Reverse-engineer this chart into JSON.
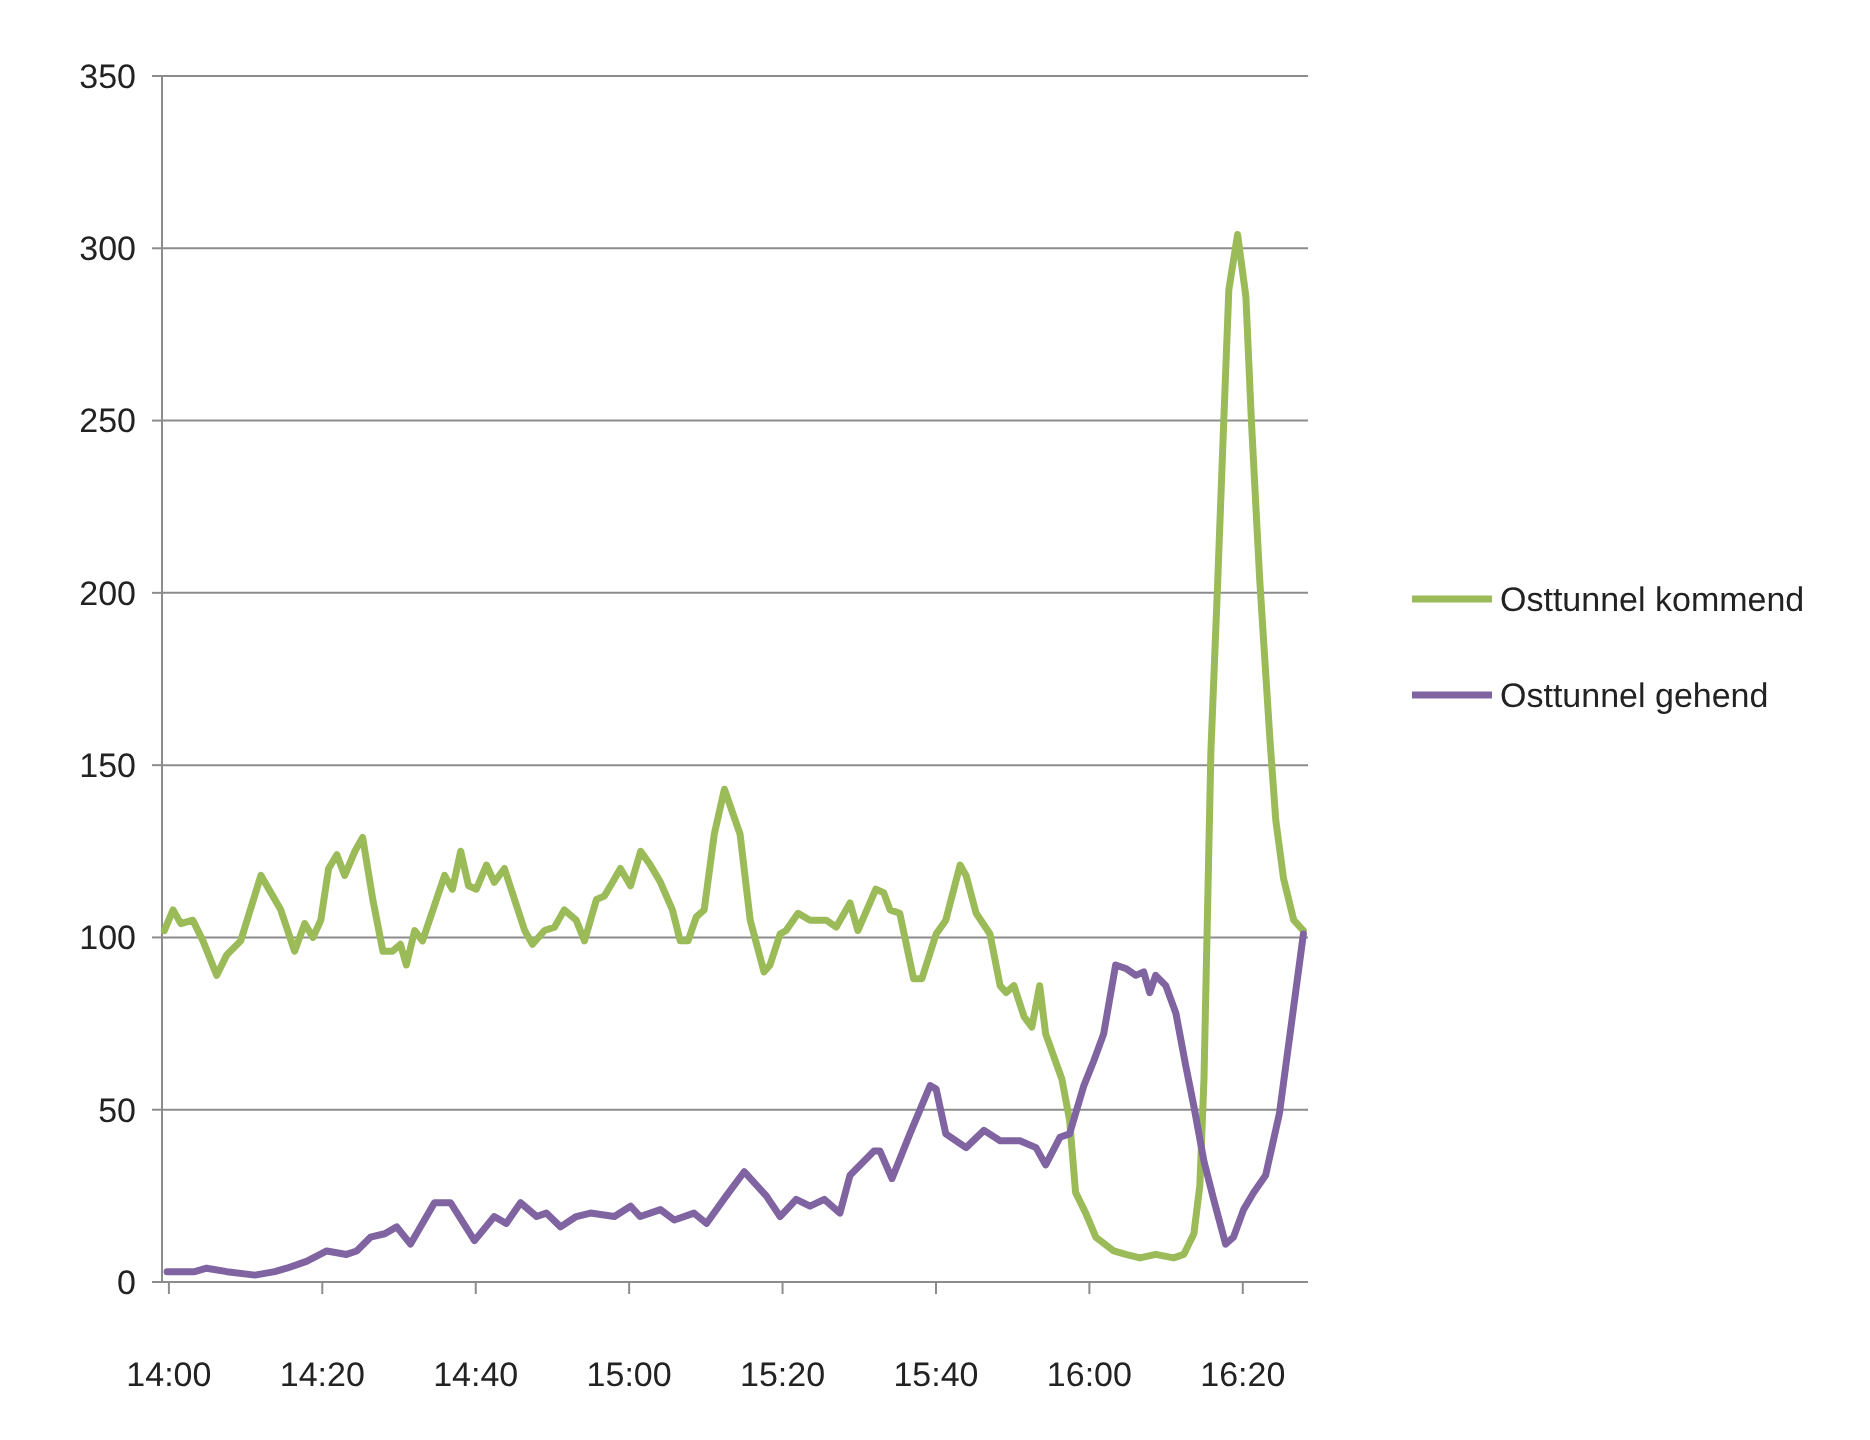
{
  "chart_data": {
    "type": "line",
    "xlim": [
      13.985,
      16.475
    ],
    "ylim": [
      0,
      350
    ],
    "xticks": [
      {
        "value": 14,
        "label": "14:00"
      },
      {
        "value": 14.3333,
        "label": "14:20"
      },
      {
        "value": 14.6667,
        "label": "14:40"
      },
      {
        "value": 15,
        "label": "15:00"
      },
      {
        "value": 15.3333,
        "label": "15:20"
      },
      {
        "value": 15.6667,
        "label": "15:40"
      },
      {
        "value": 16,
        "label": "16:00"
      },
      {
        "value": 16.3333,
        "label": "16:20"
      }
    ],
    "yticks": [
      0,
      50,
      100,
      150,
      200,
      250,
      300,
      350
    ],
    "grid": "y",
    "legend": "right",
    "marker": "none",
    "line_style": "solid",
    "series": [
      {
        "name": "Osttunnel kommend",
        "color": "#9bbb59",
        "x": [
          13.99,
          14.009,
          14.026,
          14.052,
          14.074,
          14.104,
          14.126,
          14.156,
          14.2,
          14.243,
          14.273,
          14.295,
          14.313,
          14.33,
          14.347,
          14.365,
          14.382,
          14.404,
          14.421,
          14.443,
          14.465,
          14.486,
          14.503,
          14.516,
          14.534,
          14.551,
          14.599,
          14.616,
          14.634,
          14.651,
          14.668,
          14.69,
          14.707,
          14.729,
          14.773,
          14.79,
          14.816,
          14.838,
          14.859,
          14.885,
          14.903,
          14.929,
          14.946,
          14.964,
          14.981,
          15.003,
          15.025,
          15.046,
          15.068,
          15.094,
          15.111,
          15.128,
          15.146,
          15.163,
          15.185,
          15.207,
          15.241,
          15.263,
          15.293,
          15.306,
          15.328,
          15.341,
          15.367,
          15.393,
          15.428,
          15.45,
          15.48,
          15.497,
          15.536,
          15.553,
          15.567,
          15.588,
          15.618,
          15.636,
          15.667,
          15.688,
          15.719,
          15.732,
          15.754,
          15.784,
          15.806,
          15.819,
          15.836,
          15.858,
          15.875,
          15.892,
          15.905,
          15.94,
          15.957,
          15.97,
          15.992,
          16.014,
          16.053,
          16.079,
          16.11,
          16.144,
          16.183,
          16.205,
          16.227,
          16.24,
          16.249,
          16.264,
          16.279,
          16.292,
          16.303,
          16.322,
          16.34,
          16.352,
          16.37,
          16.392,
          16.405,
          16.422,
          16.444,
          16.465
        ],
        "values": [
          102,
          108,
          104,
          105,
          99,
          89,
          95,
          99,
          118,
          108,
          96,
          104,
          100,
          105,
          120,
          124,
          118,
          125,
          129,
          111,
          96,
          96,
          98,
          92,
          102,
          99,
          118,
          114,
          125,
          115,
          114,
          121,
          116,
          120,
          102,
          98,
          102,
          103,
          108,
          105,
          99,
          111,
          112,
          116,
          120,
          115,
          125,
          121,
          116,
          108,
          99,
          99,
          106,
          108,
          130,
          143,
          130,
          105,
          90,
          92,
          101,
          102,
          107,
          105,
          105,
          103,
          110,
          102,
          114,
          113,
          108,
          107,
          88,
          88,
          101,
          105,
          121,
          118,
          107,
          101,
          86,
          84,
          86,
          77,
          74,
          86,
          72,
          59,
          47,
          26,
          20,
          13,
          9,
          8,
          7,
          8,
          7,
          8,
          14,
          28,
          59,
          154,
          204,
          250,
          288,
          304,
          286,
          250,
          204,
          158,
          134,
          117,
          105,
          102
        ]
      },
      {
        "name": "Osttunnel gehend",
        "color": "#8064a2",
        "x": [
          13.996,
          14.056,
          14.082,
          14.126,
          14.187,
          14.23,
          14.256,
          14.299,
          14.343,
          14.386,
          14.408,
          14.438,
          14.469,
          14.495,
          14.525,
          14.577,
          14.612,
          14.664,
          14.707,
          14.733,
          14.764,
          14.799,
          14.82,
          14.851,
          14.885,
          14.916,
          14.968,
          15.003,
          15.024,
          15.068,
          15.098,
          15.141,
          15.168,
          15.211,
          15.25,
          15.298,
          15.328,
          15.363,
          15.393,
          15.424,
          15.458,
          15.48,
          15.532,
          15.545,
          15.571,
          15.61,
          15.654,
          15.667,
          15.688,
          15.732,
          15.771,
          15.806,
          15.849,
          15.884,
          15.905,
          15.936,
          15.957,
          15.988,
          16.009,
          16.031,
          16.057,
          16.079,
          16.101,
          16.118,
          16.131,
          16.144,
          16.166,
          16.188,
          16.209,
          16.227,
          16.249,
          16.27,
          16.296,
          16.313,
          16.335,
          16.357,
          16.383,
          16.413,
          16.465
        ],
        "values": [
          3,
          3,
          4,
          3,
          2,
          3,
          4,
          6,
          9,
          8,
          9,
          13,
          14,
          16,
          11,
          23,
          23,
          12,
          19,
          17,
          23,
          19,
          20,
          16,
          19,
          20,
          19,
          22,
          19,
          21,
          18,
          20,
          17,
          25,
          32,
          25,
          19,
          24,
          22,
          24,
          20,
          31,
          38,
          38,
          30,
          43,
          57,
          56,
          43,
          39,
          44,
          41,
          41,
          39,
          34,
          42,
          43,
          57,
          64,
          72,
          92,
          91,
          89,
          90,
          84,
          89,
          86,
          78,
          63,
          51,
          35,
          24,
          11,
          13,
          21,
          26,
          31,
          49,
          101
        ]
      }
    ]
  }
}
